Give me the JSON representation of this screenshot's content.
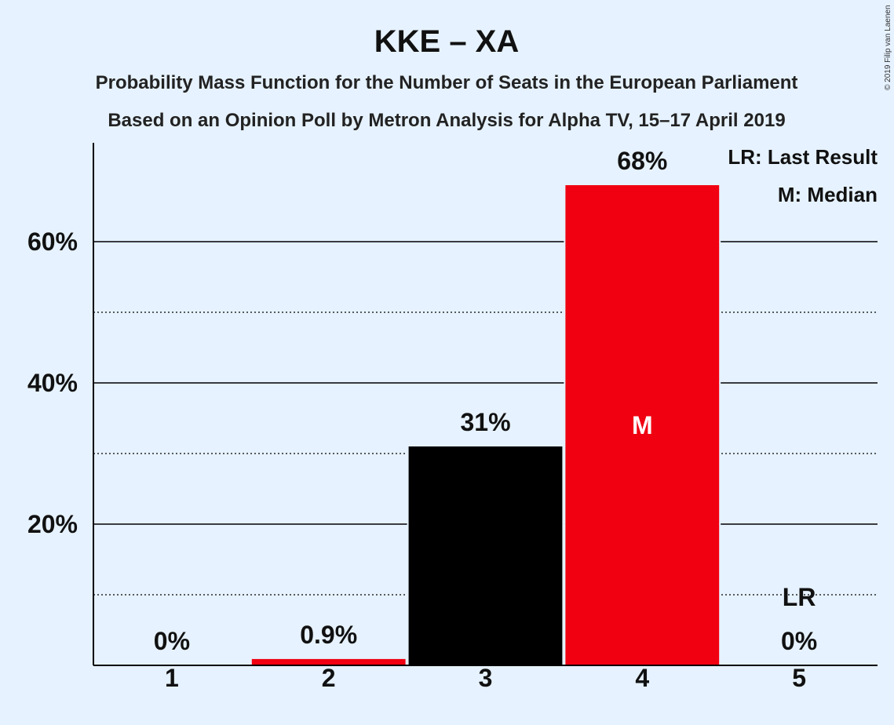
{
  "chart_data": {
    "type": "bar",
    "title": "KKE – XA",
    "subtitle_lines": [
      "Probability Mass Function for the Number of Seats in the European Parliament",
      "Based on an Opinion Poll by Metron Analysis for Alpha TV, 15–17 April 2019"
    ],
    "categories": [
      "1",
      "2",
      "3",
      "4",
      "5"
    ],
    "values": [
      0,
      0.9,
      31,
      68,
      0
    ],
    "data_labels": [
      "0%",
      "0.9%",
      "31%",
      "68%",
      "0%"
    ],
    "bar_colors": [
      "#f00011",
      "#f00011",
      "#000000",
      "#f00011",
      "#f00011"
    ],
    "ylim": [
      0,
      74
    ],
    "y_ticks": [
      {
        "value": 20,
        "label": "20%"
      },
      {
        "value": 40,
        "label": "40%"
      },
      {
        "value": 60,
        "label": "60%"
      }
    ],
    "minor_grid": [
      10,
      30,
      50
    ],
    "median_category": "4",
    "median_mark": "M",
    "last_result_category": "5",
    "last_result_mark": "LR",
    "last_result_value": 10,
    "legend": [
      "LR: Last Result",
      "M: Median"
    ],
    "legend_position": "top-right",
    "grid": true
  },
  "copyright": "© 2019 Filip van Laenen",
  "colors": {
    "background": "#e6f2ff",
    "accent": "#f00011",
    "dark": "#000000"
  }
}
